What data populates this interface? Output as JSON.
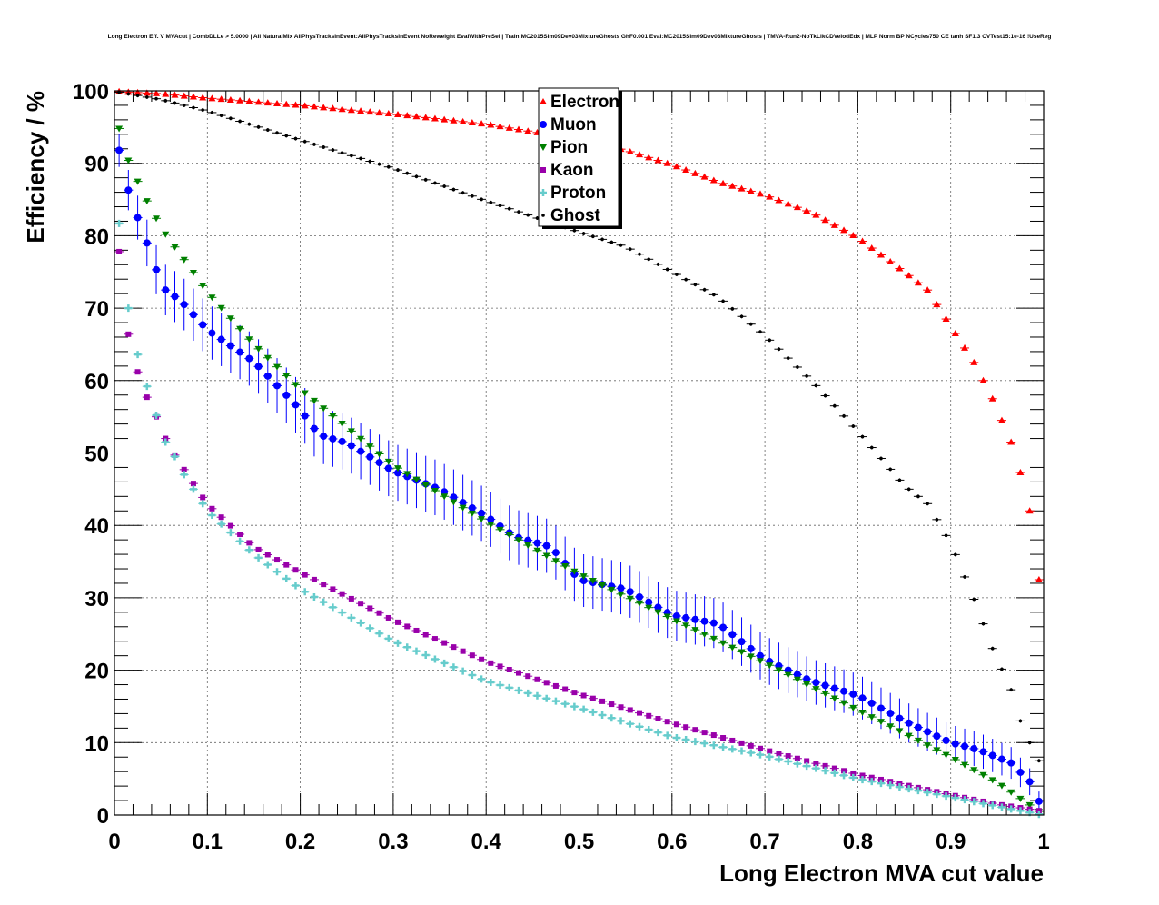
{
  "chart_data": {
    "type": "scatter",
    "title": "Long Electron Eff. V MVAcut | CombDLLe > 5.0000 | All NaturalMix AllPhysTracksInEvent:AllPhysTracksInEvent NoReweight EvalWithPreSel | Train:MC2015Sim09Dev03MixtureGhosts GhF0.001 Eval:MC2015Sim09Dev03MixtureGhosts | TMVA-Run2-NoTkLikCDVelodEdx | MLP Norm BP NCycles750 CE tanh SF1.3 CVTest15:1e-16 !UseReg",
    "xlabel": "Long Electron MVA cut value",
    "ylabel": "Efficiency / %",
    "xlim": [
      0,
      1
    ],
    "ylim": [
      0,
      100
    ],
    "x_ticks": [
      "0",
      "0.1",
      "0.2",
      "0.3",
      "0.4",
      "0.5",
      "0.6",
      "0.7",
      "0.8",
      "0.9",
      "1"
    ],
    "y_ticks": [
      "0",
      "10",
      "20",
      "30",
      "40",
      "50",
      "60",
      "70",
      "80",
      "90",
      "100"
    ],
    "grid": true,
    "legend_position": "top-center",
    "x_step": 0.01,
    "x_start": 0.005,
    "series": [
      {
        "name": "Electron",
        "color": "#ff0000",
        "marker": "triangle-up",
        "anchors": [
          [
            0.005,
            99.9
          ],
          [
            0.05,
            99.6
          ],
          [
            0.1,
            99.0
          ],
          [
            0.2,
            98.0
          ],
          [
            0.3,
            96.8
          ],
          [
            0.4,
            95.4
          ],
          [
            0.5,
            93.3
          ],
          [
            0.55,
            91.8
          ],
          [
            0.6,
            89.8
          ],
          [
            0.65,
            87.4
          ],
          [
            0.7,
            85.6
          ],
          [
            0.75,
            83.2
          ],
          [
            0.8,
            79.7
          ],
          [
            0.85,
            75.0
          ],
          [
            0.875,
            72.5
          ],
          [
            0.9,
            67.5
          ],
          [
            0.925,
            62.5
          ],
          [
            0.945,
            57.5
          ],
          [
            0.965,
            51.5
          ],
          [
            0.975,
            47.3
          ],
          [
            0.985,
            42.0
          ],
          [
            0.995,
            32.5
          ]
        ]
      },
      {
        "name": "Muon",
        "color": "#0000ff",
        "marker": "circle",
        "errors": true,
        "anchors": [
          [
            0.005,
            91.8
          ],
          [
            0.015,
            86.3
          ],
          [
            0.025,
            82.5
          ],
          [
            0.035,
            79.0
          ],
          [
            0.045,
            75.3
          ],
          [
            0.055,
            72.5
          ],
          [
            0.065,
            71.6
          ],
          [
            0.075,
            70.5
          ],
          [
            0.1,
            67.0
          ],
          [
            0.15,
            62.6
          ],
          [
            0.2,
            56.0
          ],
          [
            0.22,
            52.5
          ],
          [
            0.25,
            51.4
          ],
          [
            0.3,
            47.5
          ],
          [
            0.35,
            45.0
          ],
          [
            0.4,
            41.3
          ],
          [
            0.43,
            38.5
          ],
          [
            0.47,
            37.0
          ],
          [
            0.5,
            32.5
          ],
          [
            0.55,
            31.2
          ],
          [
            0.6,
            27.6
          ],
          [
            0.65,
            26.4
          ],
          [
            0.7,
            21.5
          ],
          [
            0.75,
            18.5
          ],
          [
            0.8,
            16.5
          ],
          [
            0.85,
            13.0
          ],
          [
            0.9,
            10.0
          ],
          [
            0.93,
            9.0
          ],
          [
            0.965,
            7.2
          ],
          [
            0.985,
            4.6
          ],
          [
            0.995,
            1.9
          ]
        ]
      },
      {
        "name": "Pion",
        "color": "#008000",
        "marker": "triangle-down",
        "anchors": [
          [
            0.005,
            94.8
          ],
          [
            0.015,
            90.4
          ],
          [
            0.025,
            87.5
          ],
          [
            0.035,
            84.8
          ],
          [
            0.045,
            82.4
          ],
          [
            0.055,
            80.2
          ],
          [
            0.075,
            76.7
          ],
          [
            0.1,
            72.2
          ],
          [
            0.15,
            65.0
          ],
          [
            0.2,
            58.8
          ],
          [
            0.3,
            48.3
          ],
          [
            0.4,
            40.5
          ],
          [
            0.5,
            33.3
          ],
          [
            0.6,
            27.1
          ],
          [
            0.7,
            21.0
          ],
          [
            0.8,
            14.5
          ],
          [
            0.85,
            11.3
          ],
          [
            0.9,
            8.0
          ],
          [
            0.95,
            4.5
          ],
          [
            0.995,
            0.5
          ]
        ]
      },
      {
        "name": "Kaon",
        "color": "#9900aa",
        "marker": "square",
        "anchors": [
          [
            0.005,
            77.8
          ],
          [
            0.015,
            66.4
          ],
          [
            0.025,
            61.2
          ],
          [
            0.035,
            57.7
          ],
          [
            0.045,
            55.0
          ],
          [
            0.055,
            52.0
          ],
          [
            0.065,
            49.7
          ],
          [
            0.075,
            47.7
          ],
          [
            0.1,
            42.9
          ],
          [
            0.15,
            37.0
          ],
          [
            0.2,
            33.5
          ],
          [
            0.3,
            26.9
          ],
          [
            0.4,
            21.2
          ],
          [
            0.5,
            16.7
          ],
          [
            0.6,
            12.7
          ],
          [
            0.7,
            9.0
          ],
          [
            0.8,
            5.6
          ],
          [
            0.9,
            2.8
          ],
          [
            0.95,
            1.5
          ],
          [
            0.995,
            0.6
          ]
        ]
      },
      {
        "name": "Proton",
        "color": "#66cccc",
        "marker": "cross",
        "anchors": [
          [
            0.005,
            81.7
          ],
          [
            0.015,
            70.0
          ],
          [
            0.025,
            63.6
          ],
          [
            0.035,
            59.2
          ],
          [
            0.045,
            55.2
          ],
          [
            0.055,
            51.5
          ],
          [
            0.065,
            49.5
          ],
          [
            0.075,
            47.0
          ],
          [
            0.1,
            42.0
          ],
          [
            0.15,
            36.0
          ],
          [
            0.2,
            31.2
          ],
          [
            0.3,
            24.0
          ],
          [
            0.4,
            18.5
          ],
          [
            0.5,
            14.8
          ],
          [
            0.6,
            10.8
          ],
          [
            0.7,
            8.2
          ],
          [
            0.8,
            5.0
          ],
          [
            0.9,
            2.5
          ],
          [
            0.95,
            1.2
          ],
          [
            0.995,
            0.1
          ]
        ]
      },
      {
        "name": "Ghost",
        "color": "#000000",
        "marker": "dot",
        "anchors": [
          [
            0.005,
            99.8
          ],
          [
            0.05,
            98.8
          ],
          [
            0.1,
            97.2
          ],
          [
            0.2,
            93.2
          ],
          [
            0.3,
            89.3
          ],
          [
            0.4,
            84.8
          ],
          [
            0.5,
            80.5
          ],
          [
            0.55,
            78.5
          ],
          [
            0.6,
            75.0
          ],
          [
            0.65,
            71.5
          ],
          [
            0.7,
            66.2
          ],
          [
            0.75,
            60.0
          ],
          [
            0.8,
            53.0
          ],
          [
            0.85,
            45.5
          ],
          [
            0.875,
            43.0
          ],
          [
            0.9,
            37.5
          ],
          [
            0.925,
            29.8
          ],
          [
            0.945,
            23.0
          ],
          [
            0.965,
            17.3
          ],
          [
            0.975,
            13.0
          ],
          [
            0.985,
            10.0
          ],
          [
            0.995,
            7.5
          ]
        ]
      }
    ]
  }
}
